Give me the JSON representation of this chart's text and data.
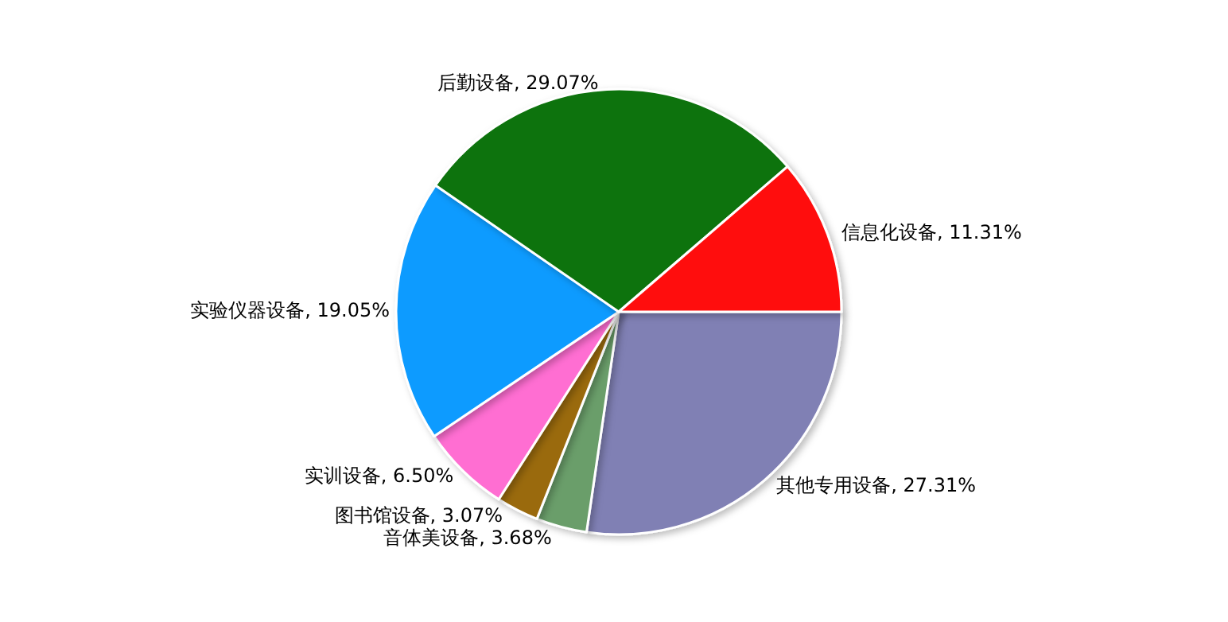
{
  "chart_data": {
    "type": "pie",
    "categories": [
      "其他专用设备",
      "音体美设备",
      "图书馆设备",
      "实训设备",
      "实验仪器设备",
      "后勤设备",
      "信息化设备"
    ],
    "values": [
      27.31,
      3.68,
      3.07,
      6.5,
      19.05,
      29.07,
      11.31
    ],
    "value_labels": [
      "27.31%",
      "3.68%",
      "3.07%",
      "6.50%",
      "19.05%",
      "29.07%",
      "11.31%"
    ],
    "colors": [
      "#8080b4",
      "#6a9e6a",
      "#9a6a10",
      "#ff6ed2",
      "#109bff",
      "#0c730c",
      "#ff1010"
    ]
  }
}
